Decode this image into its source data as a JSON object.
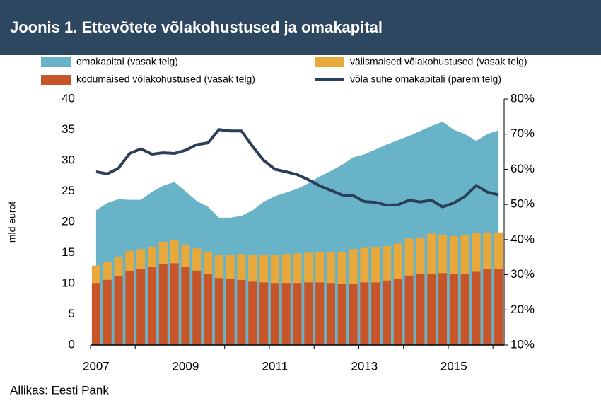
{
  "chart_data": {
    "type": "bar",
    "title": "Joonis 1. Ettevõtete võlakohustused ja omakapital",
    "source": "Allikas: Eesti Pank",
    "ylabel": "mld eurot",
    "categories": [
      "2007",
      null,
      null,
      null,
      null,
      null,
      null,
      null,
      "2009",
      null,
      null,
      null,
      null,
      null,
      null,
      null,
      "2011",
      null,
      null,
      null,
      null,
      null,
      null,
      null,
      "2013",
      null,
      null,
      null,
      null,
      null,
      null,
      null,
      "2015",
      null,
      null,
      null,
      null
    ],
    "ylim": [
      0,
      40
    ],
    "yticks": [
      0,
      5,
      10,
      15,
      20,
      25,
      30,
      35,
      40
    ],
    "y2lim": [
      10,
      80
    ],
    "y2ticks": [
      {
        "value": 10,
        "label": "10%"
      },
      {
        "value": 20,
        "label": "20%"
      },
      {
        "value": 30,
        "label": "30%"
      },
      {
        "value": 40,
        "label": "40%"
      },
      {
        "value": 50,
        "label": "50%"
      },
      {
        "value": 60,
        "label": "60%"
      },
      {
        "value": 70,
        "label": "70%"
      },
      {
        "value": 80,
        "label": "80%"
      }
    ],
    "series": [
      {
        "name": "omakapital (vasak telg)",
        "kind": "area",
        "color": "#69b3c9",
        "values": [
          21.9,
          23.1,
          23.7,
          23.6,
          23.6,
          24.9,
          25.9,
          26.5,
          25.0,
          23.4,
          22.5,
          20.7,
          20.7,
          21.0,
          21.9,
          23.3,
          24.2,
          24.8,
          25.4,
          26.3,
          27.4,
          28.3,
          29.3,
          30.5,
          31.0,
          31.8,
          32.6,
          33.3,
          34.0,
          34.8,
          35.6,
          36.3,
          35.0,
          34.3,
          33.2,
          34.3,
          34.9
        ]
      },
      {
        "name": "välismaised võlakohustused (vasak telg)",
        "kind": "stack",
        "color": "#e8a83a",
        "values": [
          2.8,
          2.9,
          3.1,
          3.3,
          3.3,
          3.3,
          3.6,
          3.8,
          3.6,
          3.6,
          3.7,
          3.8,
          4.0,
          4.2,
          4.3,
          4.4,
          4.6,
          4.7,
          4.8,
          4.8,
          4.9,
          5.0,
          5.1,
          5.6,
          5.6,
          5.7,
          5.6,
          5.7,
          6.0,
          6.0,
          6.5,
          6.2,
          6.1,
          6.3,
          6.3,
          5.9,
          6.0
        ]
      },
      {
        "name": "kodumaised võlakohustused (vasak telg)",
        "kind": "stack",
        "color": "#c8552a",
        "values": [
          10.1,
          10.6,
          11.2,
          12.0,
          12.3,
          12.7,
          13.2,
          13.3,
          12.7,
          12.1,
          11.5,
          10.9,
          10.7,
          10.6,
          10.3,
          10.2,
          10.1,
          10.1,
          10.1,
          10.2,
          10.2,
          10.1,
          10.0,
          10.0,
          10.2,
          10.2,
          10.5,
          10.8,
          11.3,
          11.5,
          11.6,
          11.7,
          11.6,
          11.6,
          11.9,
          12.4,
          12.3
        ]
      },
      {
        "name": "võla suhe omakapitali (parem telg)",
        "kind": "line",
        "axis": "y2",
        "color": "#2b3f58",
        "values": [
          59.3,
          58.7,
          60.3,
          64.5,
          65.8,
          64.3,
          64.7,
          64.5,
          65.4,
          67.0,
          67.5,
          71.3,
          70.9,
          70.9,
          66.5,
          62.5,
          60.0,
          59.3,
          58.5,
          57.0,
          55.3,
          54.0,
          52.7,
          52.5,
          50.8,
          50.6,
          49.8,
          49.9,
          51.2,
          50.7,
          51.2,
          49.3,
          50.4,
          52.3,
          55.4,
          53.5,
          52.7
        ]
      }
    ]
  }
}
